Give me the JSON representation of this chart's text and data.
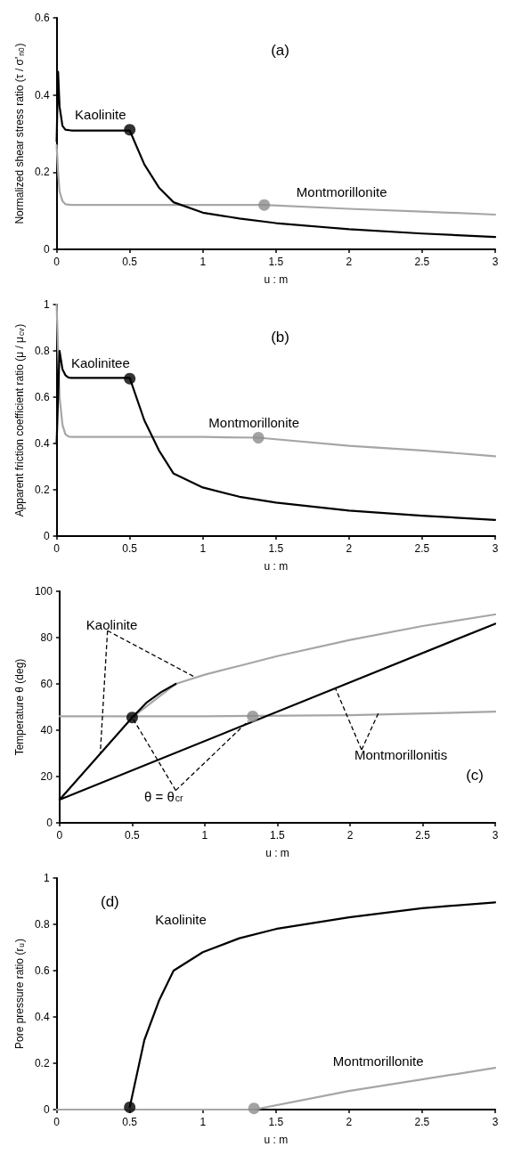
{
  "chart_data": [
    {
      "type": "line",
      "title": "(a)",
      "xlabel": "u : m",
      "ylabel": "Normalized shear stress ratio (τ / σ'$_{n0}$)",
      "xlim": [
        0,
        3
      ],
      "xticks": [
        0,
        0.5,
        1,
        1.5,
        2,
        2.5,
        3
      ],
      "ylim": [
        0,
        0.6
      ],
      "yticks": [
        0,
        0.2,
        0.4,
        0.6
      ],
      "marker": "none",
      "line_style": "solid",
      "annotations": [
        "Kaolinite",
        "Montmorillonite"
      ],
      "series": [
        {
          "color": "#a6a6a6",
          "x": [
            0,
            0.01,
            0.02,
            0.04,
            0.06,
            0.1,
            0.5,
            1,
            1.42,
            2,
            2.5,
            3
          ],
          "values": [
            0.27,
            0.2,
            0.15,
            0.125,
            0.117,
            0.115,
            0.115,
            0.115,
            0.115,
            0.105,
            0.098,
            0.09
          ]
        },
        {
          "color": "#000000",
          "x": [
            0,
            0.01,
            0.02,
            0.04,
            0.06,
            0.1,
            0.3,
            0.5,
            0.6,
            0.7,
            0.8,
            1,
            1.25,
            1.5,
            2,
            2.5,
            3
          ],
          "values": [
            0.28,
            0.46,
            0.37,
            0.32,
            0.31,
            0.308,
            0.308,
            0.308,
            0.22,
            0.16,
            0.122,
            0.095,
            0.08,
            0.068,
            0.052,
            0.041,
            0.032
          ]
        },
        {
          "type": "scatter",
          "marker": "circle",
          "color": "#000000",
          "x": [
            0.5
          ],
          "values": [
            0.31
          ]
        },
        {
          "type": "scatter",
          "marker": "circle",
          "color": "#8c8c8c",
          "x": [
            1.42
          ],
          "values": [
            0.115
          ]
        }
      ]
    },
    {
      "type": "line",
      "title": "(b)",
      "xlabel": "u : m",
      "ylabel": "Apparent friction coefficient ratio (μ / μ$_{cv}$)",
      "xlim": [
        0,
        3
      ],
      "xticks": [
        0,
        0.5,
        1,
        1.5,
        2,
        2.5,
        3
      ],
      "ylim": [
        0,
        1
      ],
      "yticks": [
        0,
        0.2,
        0.4,
        0.6,
        0.8,
        1
      ],
      "marker": "none",
      "line_style": "solid",
      "annotations": [
        "Kaolinitee",
        "Montmorillonite"
      ],
      "series": [
        {
          "color": "#a6a6a6",
          "x": [
            0,
            0.01,
            0.02,
            0.04,
            0.06,
            0.08,
            0.1,
            0.5,
            1,
            1.38,
            2,
            2.5,
            3
          ],
          "values": [
            1,
            0.8,
            0.6,
            0.48,
            0.44,
            0.43,
            0.428,
            0.428,
            0.428,
            0.425,
            0.39,
            0.37,
            0.345
          ]
        },
        {
          "color": "#000000",
          "x": [
            0,
            0.02,
            0.04,
            0.06,
            0.08,
            0.1,
            0.3,
            0.5,
            0.6,
            0.7,
            0.8,
            1,
            1.25,
            1.5,
            2,
            2.5,
            3
          ],
          "values": [
            0.4,
            0.8,
            0.72,
            0.695,
            0.685,
            0.683,
            0.683,
            0.683,
            0.5,
            0.37,
            0.27,
            0.21,
            0.17,
            0.145,
            0.11,
            0.088,
            0.07
          ]
        },
        {
          "type": "scatter",
          "marker": "circle",
          "color": "#000000",
          "x": [
            0.5
          ],
          "values": [
            0.68
          ]
        },
        {
          "type": "scatter",
          "marker": "circle",
          "color": "#8c8c8c",
          "x": [
            1.38
          ],
          "values": [
            0.425
          ]
        }
      ]
    },
    {
      "type": "line",
      "title": "(c)",
      "xlabel": "u : m",
      "ylabel": "Temperature θ (deg)",
      "xlim": [
        0,
        3
      ],
      "xticks": [
        0,
        0.5,
        1,
        1.5,
        2,
        2.5,
        3
      ],
      "ylim": [
        0,
        100
      ],
      "yticks": [
        0,
        20,
        40,
        60,
        80,
        100
      ],
      "marker": "none",
      "line_style": "solid",
      "annotations": [
        {
          "text": "Kaolinite",
          "x": 0.28,
          "y": 30
        },
        {
          "text": "θ = θ$_{cr}$",
          "x": 0.5,
          "y": 45.5
        },
        {
          "text": "Montmorillonitis",
          "x": 1.9,
          "y": 58
        }
      ],
      "series": [
        {
          "color": "#a6a6a6",
          "x": [
            0,
            1,
            2,
            3
          ],
          "values": [
            46,
            46,
            46.5,
            48
          ]
        },
        {
          "color": "#a6a6a6",
          "x": [
            0.5,
            0.8,
            1,
            1.25,
            1.5,
            2,
            2.5,
            3
          ],
          "values": [
            45.5,
            60,
            64,
            68,
            72,
            79,
            85,
            90
          ]
        },
        {
          "color": "#000000",
          "x": [
            0,
            0.5,
            0.6,
            0.7,
            0.8
          ],
          "values": [
            10,
            45.5,
            52,
            56.5,
            60
          ]
        },
        {
          "color": "#000000",
          "x": [
            0,
            3
          ],
          "values": [
            10,
            86
          ]
        },
        {
          "type": "scatter",
          "marker": "circle",
          "color": "#000000",
          "x": [
            0.5
          ],
          "values": [
            45.5
          ]
        },
        {
          "type": "scatter",
          "marker": "circle",
          "color": "#8c8c8c",
          "x": [
            1.33
          ],
          "values": [
            46
          ]
        }
      ]
    },
    {
      "type": "line",
      "title": "(d)",
      "xlabel": "u : m",
      "ylabel": "Pore pressure ratio (r$_{u}$)",
      "xlim": [
        0,
        3
      ],
      "xticks": [
        0,
        0.5,
        1,
        1.5,
        2,
        2.5,
        3
      ],
      "ylim": [
        0,
        1
      ],
      "yticks": [
        0,
        0.2,
        0.4,
        0.6,
        0.8,
        1
      ],
      "marker": "none",
      "line_style": "solid",
      "annotations": [
        "Kaolinite",
        "Montmorillonite"
      ],
      "series": [
        {
          "color": "#a6a6a6",
          "x": [
            0,
            1.35,
            2,
            2.5,
            3
          ],
          "values": [
            0,
            0,
            0.08,
            0.13,
            0.18
          ]
        },
        {
          "color": "#000000",
          "x": [
            0.5,
            0.6,
            0.7,
            0.8,
            1,
            1.25,
            1.5,
            2,
            2.5,
            3
          ],
          "values": [
            0.01,
            0.3,
            0.47,
            0.6,
            0.68,
            0.74,
            0.78,
            0.83,
            0.87,
            0.895
          ]
        },
        {
          "type": "scatter",
          "marker": "circle",
          "color": "#000000",
          "x": [
            0.5
          ],
          "values": [
            0.01
          ]
        },
        {
          "type": "scatter",
          "marker": "circle",
          "color": "#8c8c8c",
          "x": [
            1.35
          ],
          "values": [
            0.005
          ]
        }
      ]
    }
  ]
}
